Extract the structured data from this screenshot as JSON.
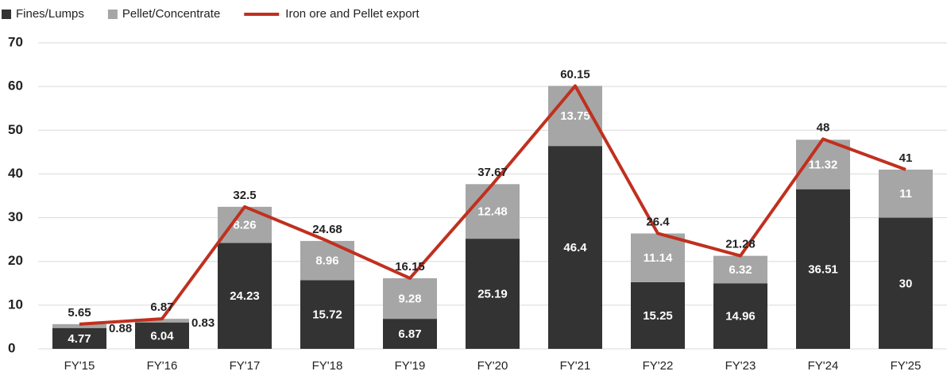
{
  "chart_data": {
    "type": "bar",
    "categories": [
      "FY'15",
      "FY'16",
      "FY'17",
      "FY'18",
      "FY'19",
      "FY'20",
      "FY'21",
      "FY'22",
      "FY'23",
      "FY'24",
      "FY'25"
    ],
    "series": [
      {
        "name": "Fines/Lumps",
        "color": "#333333",
        "type": "bar",
        "values": [
          4.77,
          6.04,
          24.23,
          15.72,
          6.87,
          25.19,
          46.4,
          15.25,
          14.96,
          36.51,
          30
        ]
      },
      {
        "name": "Pellet/Concentrate",
        "color": "#a6a6a6",
        "type": "bar",
        "values": [
          0.88,
          0.83,
          8.26,
          8.96,
          9.28,
          12.48,
          13.75,
          11.14,
          6.32,
          11.32,
          11
        ]
      },
      {
        "name": "Iron ore and Pellet export",
        "color": "#c0301f",
        "type": "line",
        "values": [
          5.65,
          6.87,
          32.5,
          24.68,
          16.15,
          37.67,
          60.15,
          26.4,
          21.28,
          48,
          41
        ]
      }
    ],
    "stacked": true,
    "ylim": [
      0,
      70
    ],
    "yticks": [
      0,
      10,
      20,
      30,
      40,
      50,
      60,
      70
    ],
    "grid": true,
    "legend": "top-left"
  }
}
